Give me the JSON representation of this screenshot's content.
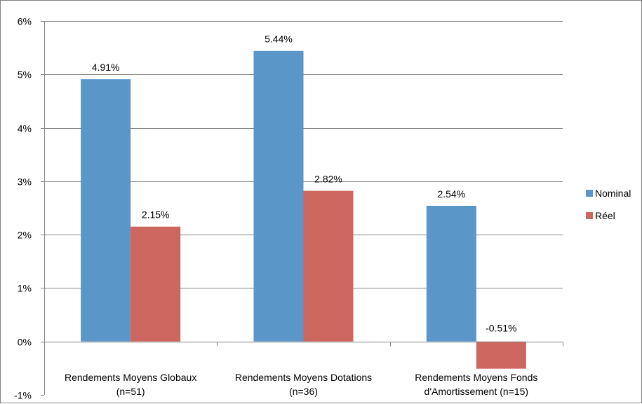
{
  "chart_data": {
    "type": "bar",
    "categories": [
      [
        "Rendements Moyens Globaux",
        "(n=51)"
      ],
      [
        "Rendements Moyens Dotations",
        "(n=36)"
      ],
      [
        "Rendements Moyens Fonds",
        "d'Amortissement (n=15)"
      ]
    ],
    "series": [
      {
        "name": "Nominal",
        "color": "#5b96c9",
        "values": [
          4.91,
          5.44,
          2.54
        ],
        "labels": [
          "4.91%",
          "5.44%",
          "2.54%"
        ]
      },
      {
        "name": "Réel",
        "color": "#cd665f",
        "values": [
          2.15,
          2.82,
          -0.51
        ],
        "labels": [
          "2.15%",
          "2.82%",
          "-0.51%"
        ]
      }
    ],
    "y_ticks": [
      {
        "value": 6,
        "label": "6%"
      },
      {
        "value": 5,
        "label": "5%"
      },
      {
        "value": 4,
        "label": "4%"
      },
      {
        "value": 3,
        "label": "3%"
      },
      {
        "value": 2,
        "label": "2%"
      },
      {
        "value": 1,
        "label": "1%"
      },
      {
        "value": 0,
        "label": "0%"
      },
      {
        "value": -1,
        "label": "-1%"
      }
    ],
    "ylim": [
      -1,
      6
    ],
    "grid": true,
    "legend_position": "right",
    "title": "",
    "xlabel": "",
    "ylabel": ""
  }
}
